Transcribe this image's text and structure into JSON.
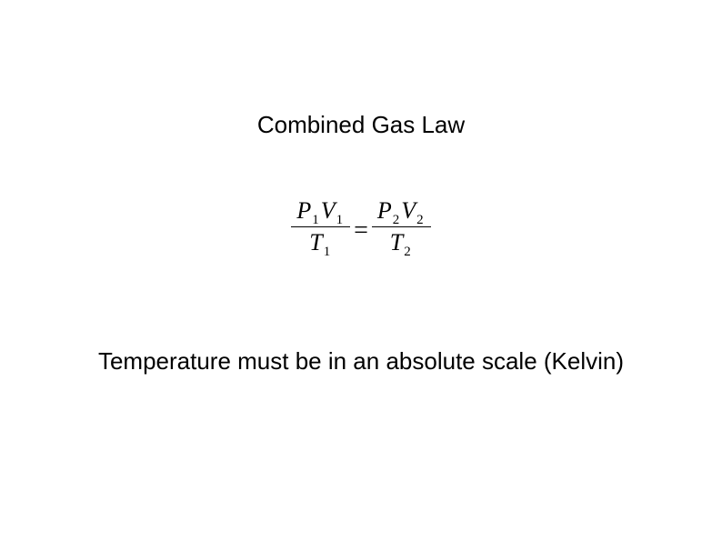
{
  "title": "Combined Gas Law",
  "equation": {
    "left": {
      "numerator": {
        "p_var": "P",
        "p_sub": "1",
        "v_var": "V",
        "v_sub": "1"
      },
      "denominator": {
        "t_var": "T",
        "t_sub": "1"
      }
    },
    "equals": "=",
    "right": {
      "numerator": {
        "p_var": "P",
        "p_sub": "2",
        "v_var": "V",
        "v_sub": "2"
      },
      "denominator": {
        "t_var": "T",
        "t_sub": "2"
      }
    }
  },
  "note": "Temperature must be in an absolute scale (Kelvin)",
  "colors": {
    "background": "#ffffff",
    "text": "#000000"
  },
  "typography": {
    "title_fontsize": 26,
    "equation_fontsize": 26,
    "subscript_fontsize": 15,
    "note_fontsize": 26,
    "body_font": "Arial",
    "math_font": "Times New Roman"
  }
}
